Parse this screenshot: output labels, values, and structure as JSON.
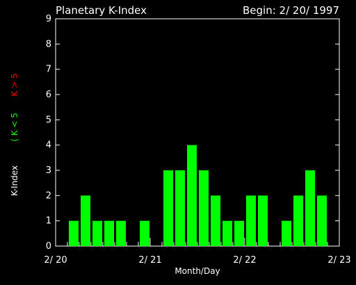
{
  "chart_data": {
    "type": "bar",
    "title": "Planetary K-Index",
    "begin_label": "Begin: 2/ 20/ 1997",
    "xlabel": "Month/Day",
    "ylabel": "K-Index",
    "legend": {
      "low": "( K < 5",
      "high": "K > 5"
    },
    "x_ticks": [
      "2/ 20",
      "2/ 21",
      "2/ 22",
      "2/ 23"
    ],
    "y_ticks": [
      "0",
      "1",
      "2",
      "3",
      "4",
      "5",
      "6",
      "7",
      "8",
      "9"
    ],
    "ylim": [
      0,
      9
    ],
    "interval_hours": 3,
    "values": [
      null,
      1,
      2,
      1,
      1,
      1,
      null,
      1,
      null,
      3,
      3,
      4,
      3,
      2,
      1,
      1,
      2,
      2,
      null,
      1,
      2,
      3,
      2,
      null
    ],
    "colors": {
      "low": "#00ff00",
      "high": "#ff0000",
      "axes": "#ffffff",
      "background": "#000000"
    }
  }
}
